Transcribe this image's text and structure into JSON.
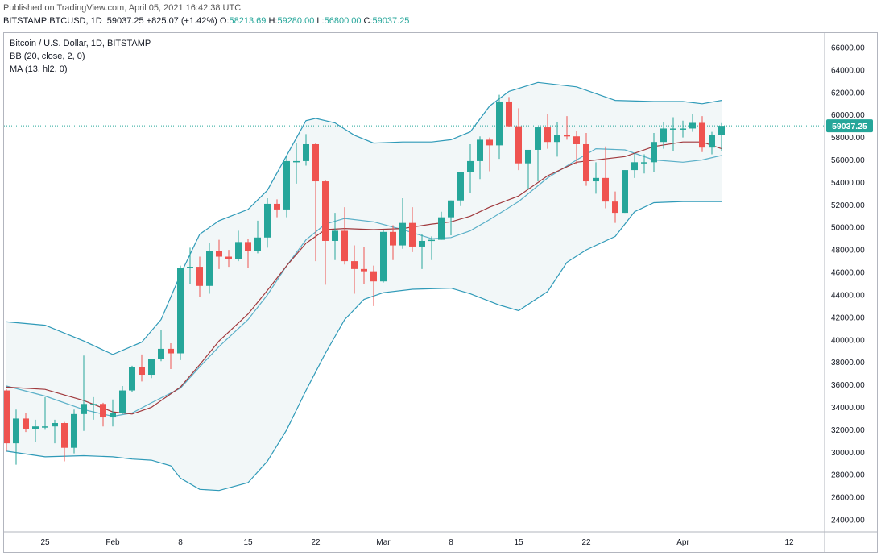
{
  "header": {
    "published": "Published on TradingView.com, April 05, 2021 16:42:38 UTC",
    "symbol": "BITSTAMP:BTCUSD, 1D",
    "last": "59037.25",
    "change": "+825.07 (+1.42%)",
    "o_label": "O:",
    "o": "58213.69",
    "h_label": "H:",
    "h": "59280.00",
    "l_label": "L:",
    "l": "56800.00",
    "c_label": "C:",
    "c": "59037.25"
  },
  "legend": {
    "title": "Bitcoin / U.S. Dollar, 1D, BITSTAMP",
    "bb": "BB (20, close, 2, 0)",
    "ma": "MA (13, hl2, 0)"
  },
  "colors": {
    "up": "#26a69a",
    "down": "#ef5350",
    "bb_band": "#2f9ab8",
    "bb_basis": "#5bb0c8",
    "ma": "#a0393d",
    "last_price_tag": "#26a69a"
  },
  "chart_data": {
    "type": "candlestick",
    "title": "Bitcoin / U.S. Dollar, 1D, BITSTAMP",
    "ylim": [
      23500,
      66800
    ],
    "y_ticks": [
      24000,
      26000,
      28000,
      30000,
      32000,
      34000,
      36000,
      38000,
      40000,
      42000,
      44000,
      46000,
      48000,
      50000,
      52000,
      54000,
      56000,
      58000,
      60000,
      62000,
      64000,
      66000
    ],
    "x_ticks": [
      "25",
      "Feb",
      "8",
      "15",
      "22",
      "Mar",
      "8",
      "15",
      "22",
      "Apr",
      "12"
    ],
    "x_tick_dates": [
      "2021-01-25",
      "2021-02-01",
      "2021-02-08",
      "2021-02-15",
      "2021-02-22",
      "2021-03-01",
      "2021-03-08",
      "2021-03-15",
      "2021-03-22",
      "2021-04-01",
      "2021-04-12"
    ],
    "last_price": 59037.25,
    "grid": true,
    "candles": [
      {
        "d": "2021-01-21",
        "o": 35500,
        "h": 35600,
        "l": 30100,
        "c": 30800
      },
      {
        "d": "2021-01-22",
        "o": 30800,
        "h": 33800,
        "l": 28900,
        "c": 33000
      },
      {
        "d": "2021-01-23",
        "o": 33000,
        "h": 33500,
        "l": 31800,
        "c": 32100
      },
      {
        "d": "2021-01-24",
        "o": 32100,
        "h": 32900,
        "l": 30900,
        "c": 32300
      },
      {
        "d": "2021-01-25",
        "o": 32300,
        "h": 34900,
        "l": 32000,
        "c": 32300
      },
      {
        "d": "2021-01-26",
        "o": 32300,
        "h": 32900,
        "l": 30800,
        "c": 32600
      },
      {
        "d": "2021-01-27",
        "o": 32600,
        "h": 32700,
        "l": 29200,
        "c": 30400
      },
      {
        "d": "2021-01-28",
        "o": 30400,
        "h": 33800,
        "l": 29900,
        "c": 33400
      },
      {
        "d": "2021-01-29",
        "o": 33400,
        "h": 38600,
        "l": 31900,
        "c": 34300
      },
      {
        "d": "2021-01-30",
        "o": 34300,
        "h": 34900,
        "l": 32900,
        "c": 34300
      },
      {
        "d": "2021-01-31",
        "o": 34300,
        "h": 34400,
        "l": 32300,
        "c": 33100
      },
      {
        "d": "2021-02-01",
        "o": 33100,
        "h": 34700,
        "l": 32300,
        "c": 33500
      },
      {
        "d": "2021-02-02",
        "o": 33500,
        "h": 35900,
        "l": 33400,
        "c": 35500
      },
      {
        "d": "2021-02-03",
        "o": 35500,
        "h": 37700,
        "l": 35400,
        "c": 37600
      },
      {
        "d": "2021-02-04",
        "o": 37600,
        "h": 38700,
        "l": 36300,
        "c": 36900
      },
      {
        "d": "2021-02-05",
        "o": 36900,
        "h": 38300,
        "l": 36600,
        "c": 38300
      },
      {
        "d": "2021-02-06",
        "o": 38300,
        "h": 40900,
        "l": 38100,
        "c": 39200
      },
      {
        "d": "2021-02-07",
        "o": 39200,
        "h": 39700,
        "l": 37400,
        "c": 38800
      },
      {
        "d": "2021-02-08",
        "o": 38800,
        "h": 46600,
        "l": 38200,
        "c": 46400
      },
      {
        "d": "2021-02-09",
        "o": 46400,
        "h": 48200,
        "l": 45000,
        "c": 46500
      },
      {
        "d": "2021-02-10",
        "o": 46500,
        "h": 47400,
        "l": 43800,
        "c": 44800
      },
      {
        "d": "2021-02-11",
        "o": 44800,
        "h": 48600,
        "l": 44100,
        "c": 47900
      },
      {
        "d": "2021-02-12",
        "o": 47900,
        "h": 48900,
        "l": 46300,
        "c": 47400
      },
      {
        "d": "2021-02-13",
        "o": 47400,
        "h": 48000,
        "l": 46500,
        "c": 47200
      },
      {
        "d": "2021-02-14",
        "o": 47200,
        "h": 49700,
        "l": 47000,
        "c": 48700
      },
      {
        "d": "2021-02-15",
        "o": 48700,
        "h": 49000,
        "l": 46400,
        "c": 47900
      },
      {
        "d": "2021-02-16",
        "o": 47900,
        "h": 50600,
        "l": 47700,
        "c": 49100
      },
      {
        "d": "2021-02-17",
        "o": 49100,
        "h": 52600,
        "l": 48200,
        "c": 52100
      },
      {
        "d": "2021-02-18",
        "o": 52100,
        "h": 52500,
        "l": 50900,
        "c": 51600
      },
      {
        "d": "2021-02-19",
        "o": 51600,
        "h": 56300,
        "l": 50900,
        "c": 55900
      },
      {
        "d": "2021-02-20",
        "o": 55900,
        "h": 57500,
        "l": 53900,
        "c": 55900
      },
      {
        "d": "2021-02-21",
        "o": 55900,
        "h": 58300,
        "l": 55500,
        "c": 57400
      },
      {
        "d": "2021-02-22",
        "o": 57400,
        "h": 57500,
        "l": 47000,
        "c": 54100
      },
      {
        "d": "2021-02-23",
        "o": 54100,
        "h": 54200,
        "l": 44900,
        "c": 48800
      },
      {
        "d": "2021-02-24",
        "o": 48800,
        "h": 51300,
        "l": 47100,
        "c": 49700
      },
      {
        "d": "2021-02-25",
        "o": 49700,
        "h": 51800,
        "l": 46700,
        "c": 47000
      },
      {
        "d": "2021-02-26",
        "o": 47000,
        "h": 48400,
        "l": 44100,
        "c": 46300
      },
      {
        "d": "2021-02-27",
        "o": 46300,
        "h": 48300,
        "l": 45000,
        "c": 46100
      },
      {
        "d": "2021-02-28",
        "o": 46100,
        "h": 46600,
        "l": 43000,
        "c": 45200
      },
      {
        "d": "2021-03-01",
        "o": 45200,
        "h": 49800,
        "l": 45100,
        "c": 49600
      },
      {
        "d": "2021-03-02",
        "o": 49600,
        "h": 50200,
        "l": 47100,
        "c": 48400
      },
      {
        "d": "2021-03-03",
        "o": 48400,
        "h": 52600,
        "l": 48100,
        "c": 50400
      },
      {
        "d": "2021-03-04",
        "o": 50400,
        "h": 51800,
        "l": 47800,
        "c": 48300
      },
      {
        "d": "2021-03-05",
        "o": 48300,
        "h": 49400,
        "l": 46300,
        "c": 48800
      },
      {
        "d": "2021-03-06",
        "o": 48800,
        "h": 49200,
        "l": 47100,
        "c": 48900
      },
      {
        "d": "2021-03-07",
        "o": 48900,
        "h": 51400,
        "l": 48900,
        "c": 50900
      },
      {
        "d": "2021-03-08",
        "o": 50900,
        "h": 52400,
        "l": 49300,
        "c": 52400
      },
      {
        "d": "2021-03-09",
        "o": 52400,
        "h": 54900,
        "l": 51900,
        "c": 54900
      },
      {
        "d": "2021-03-10",
        "o": 54900,
        "h": 57400,
        "l": 53100,
        "c": 55900
      },
      {
        "d": "2021-03-11",
        "o": 55900,
        "h": 58100,
        "l": 54300,
        "c": 57800
      },
      {
        "d": "2021-03-12",
        "o": 57800,
        "h": 58000,
        "l": 55000,
        "c": 57300
      },
      {
        "d": "2021-03-13",
        "o": 57300,
        "h": 61800,
        "l": 56100,
        "c": 61200
      },
      {
        "d": "2021-03-14",
        "o": 61200,
        "h": 61600,
        "l": 58900,
        "c": 59000
      },
      {
        "d": "2021-03-15",
        "o": 59000,
        "h": 60600,
        "l": 55100,
        "c": 55700
      },
      {
        "d": "2021-03-16",
        "o": 55700,
        "h": 56900,
        "l": 53400,
        "c": 56900
      },
      {
        "d": "2021-03-17",
        "o": 56900,
        "h": 58900,
        "l": 54100,
        "c": 58900
      },
      {
        "d": "2021-03-18",
        "o": 58900,
        "h": 60100,
        "l": 57000,
        "c": 57600
      },
      {
        "d": "2021-03-19",
        "o": 57600,
        "h": 59400,
        "l": 56300,
        "c": 58200
      },
      {
        "d": "2021-03-20",
        "o": 58200,
        "h": 59900,
        "l": 57800,
        "c": 58100
      },
      {
        "d": "2021-03-21",
        "o": 58100,
        "h": 58600,
        "l": 55600,
        "c": 57400
      },
      {
        "d": "2021-03-22",
        "o": 57400,
        "h": 58400,
        "l": 53700,
        "c": 54100
      },
      {
        "d": "2021-03-23",
        "o": 54100,
        "h": 55800,
        "l": 53000,
        "c": 54400
      },
      {
        "d": "2021-03-24",
        "o": 54400,
        "h": 57200,
        "l": 51700,
        "c": 52300
      },
      {
        "d": "2021-03-25",
        "o": 52300,
        "h": 53200,
        "l": 50400,
        "c": 51300
      },
      {
        "d": "2021-03-26",
        "o": 51300,
        "h": 55100,
        "l": 51300,
        "c": 55100
      },
      {
        "d": "2021-03-27",
        "o": 55100,
        "h": 56600,
        "l": 54400,
        "c": 55800
      },
      {
        "d": "2021-03-28",
        "o": 55800,
        "h": 56500,
        "l": 54800,
        "c": 55800
      },
      {
        "d": "2021-03-29",
        "o": 55800,
        "h": 58400,
        "l": 54900,
        "c": 57600
      },
      {
        "d": "2021-03-30",
        "o": 57600,
        "h": 59400,
        "l": 57000,
        "c": 58800
      },
      {
        "d": "2021-03-31",
        "o": 58800,
        "h": 59800,
        "l": 56800,
        "c": 58800
      },
      {
        "d": "2021-04-01",
        "o": 58800,
        "h": 59500,
        "l": 58000,
        "c": 58800
      },
      {
        "d": "2021-04-02",
        "o": 58800,
        "h": 60100,
        "l": 58500,
        "c": 59300
      },
      {
        "d": "2021-04-03",
        "o": 59300,
        "h": 59900,
        "l": 56700,
        "c": 57100
      },
      {
        "d": "2021-04-04",
        "o": 57100,
        "h": 58500,
        "l": 56500,
        "c": 58200
      },
      {
        "d": "2021-04-05",
        "o": 58213.69,
        "h": 59280,
        "l": 56800,
        "c": 59037.25
      }
    ],
    "bb_upper": [
      {
        "d": "2021-01-21",
        "v": 41600
      },
      {
        "d": "2021-01-25",
        "v": 41300
      },
      {
        "d": "2021-01-29",
        "v": 39900
      },
      {
        "d": "2021-02-01",
        "v": 38700
      },
      {
        "d": "2021-02-04",
        "v": 39800
      },
      {
        "d": "2021-02-06",
        "v": 41800
      },
      {
        "d": "2021-02-08",
        "v": 45800
      },
      {
        "d": "2021-02-10",
        "v": 49400
      },
      {
        "d": "2021-02-12",
        "v": 50600
      },
      {
        "d": "2021-02-15",
        "v": 51600
      },
      {
        "d": "2021-02-17",
        "v": 53300
      },
      {
        "d": "2021-02-19",
        "v": 56400
      },
      {
        "d": "2021-02-21",
        "v": 59500
      },
      {
        "d": "2021-02-22",
        "v": 59700
      },
      {
        "d": "2021-02-24",
        "v": 59300
      },
      {
        "d": "2021-02-26",
        "v": 58200
      },
      {
        "d": "2021-02-28",
        "v": 57500
      },
      {
        "d": "2021-03-03",
        "v": 57600
      },
      {
        "d": "2021-03-06",
        "v": 57600
      },
      {
        "d": "2021-03-08",
        "v": 57800
      },
      {
        "d": "2021-03-10",
        "v": 58500
      },
      {
        "d": "2021-03-12",
        "v": 60800
      },
      {
        "d": "2021-03-14",
        "v": 62100
      },
      {
        "d": "2021-03-17",
        "v": 62900
      },
      {
        "d": "2021-03-21",
        "v": 62500
      },
      {
        "d": "2021-03-25",
        "v": 61300
      },
      {
        "d": "2021-03-29",
        "v": 61200
      },
      {
        "d": "2021-04-01",
        "v": 61200
      },
      {
        "d": "2021-04-03",
        "v": 61000
      },
      {
        "d": "2021-04-05",
        "v": 61300
      }
    ],
    "bb_basis": [
      {
        "d": "2021-01-21",
        "v": 35900
      },
      {
        "d": "2021-01-25",
        "v": 35000
      },
      {
        "d": "2021-01-29",
        "v": 33800
      },
      {
        "d": "2021-02-01",
        "v": 33200
      },
      {
        "d": "2021-02-03",
        "v": 33500
      },
      {
        "d": "2021-02-05",
        "v": 34400
      },
      {
        "d": "2021-02-08",
        "v": 35700
      },
      {
        "d": "2021-02-10",
        "v": 37600
      },
      {
        "d": "2021-02-12",
        "v": 39400
      },
      {
        "d": "2021-02-15",
        "v": 41800
      },
      {
        "d": "2021-02-17",
        "v": 44000
      },
      {
        "d": "2021-02-19",
        "v": 46600
      },
      {
        "d": "2021-02-21",
        "v": 48900
      },
      {
        "d": "2021-02-23",
        "v": 50300
      },
      {
        "d": "2021-02-25",
        "v": 50800
      },
      {
        "d": "2021-02-28",
        "v": 50500
      },
      {
        "d": "2021-03-03",
        "v": 49800
      },
      {
        "d": "2021-03-06",
        "v": 49000
      },
      {
        "d": "2021-03-08",
        "v": 49100
      },
      {
        "d": "2021-03-10",
        "v": 49700
      },
      {
        "d": "2021-03-12",
        "v": 50700
      },
      {
        "d": "2021-03-15",
        "v": 52300
      },
      {
        "d": "2021-03-18",
        "v": 54400
      },
      {
        "d": "2021-03-21",
        "v": 56000
      },
      {
        "d": "2021-03-23",
        "v": 57000
      },
      {
        "d": "2021-03-26",
        "v": 56900
      },
      {
        "d": "2021-03-29",
        "v": 56000
      },
      {
        "d": "2021-04-01",
        "v": 55800
      },
      {
        "d": "2021-04-03",
        "v": 56000
      },
      {
        "d": "2021-04-05",
        "v": 56400
      }
    ],
    "bb_lower": [
      {
        "d": "2021-01-21",
        "v": 30100
      },
      {
        "d": "2021-01-25",
        "v": 29600
      },
      {
        "d": "2021-01-29",
        "v": 29700
      },
      {
        "d": "2021-02-01",
        "v": 29600
      },
      {
        "d": "2021-02-03",
        "v": 29400
      },
      {
        "d": "2021-02-05",
        "v": 29300
      },
      {
        "d": "2021-02-07",
        "v": 28800
      },
      {
        "d": "2021-02-08",
        "v": 27700
      },
      {
        "d": "2021-02-10",
        "v": 26700
      },
      {
        "d": "2021-02-12",
        "v": 26600
      },
      {
        "d": "2021-02-15",
        "v": 27300
      },
      {
        "d": "2021-02-17",
        "v": 29200
      },
      {
        "d": "2021-02-19",
        "v": 32000
      },
      {
        "d": "2021-02-21",
        "v": 35500
      },
      {
        "d": "2021-02-23",
        "v": 38800
      },
      {
        "d": "2021-02-25",
        "v": 41800
      },
      {
        "d": "2021-02-27",
        "v": 43600
      },
      {
        "d": "2021-03-01",
        "v": 44200
      },
      {
        "d": "2021-03-04",
        "v": 44500
      },
      {
        "d": "2021-03-08",
        "v": 44600
      },
      {
        "d": "2021-03-10",
        "v": 44100
      },
      {
        "d": "2021-03-13",
        "v": 43100
      },
      {
        "d": "2021-03-15",
        "v": 42600
      },
      {
        "d": "2021-03-18",
        "v": 44300
      },
      {
        "d": "2021-03-20",
        "v": 46900
      },
      {
        "d": "2021-03-22",
        "v": 48000
      },
      {
        "d": "2021-03-25",
        "v": 49200
      },
      {
        "d": "2021-03-27",
        "v": 51400
      },
      {
        "d": "2021-03-29",
        "v": 52200
      },
      {
        "d": "2021-04-01",
        "v": 52300
      },
      {
        "d": "2021-04-05",
        "v": 52300
      }
    ],
    "ma_13": [
      {
        "d": "2021-01-21",
        "v": 35800
      },
      {
        "d": "2021-01-25",
        "v": 35600
      },
      {
        "d": "2021-01-29",
        "v": 34600
      },
      {
        "d": "2021-02-01",
        "v": 33600
      },
      {
        "d": "2021-02-03",
        "v": 33400
      },
      {
        "d": "2021-02-05",
        "v": 34000
      },
      {
        "d": "2021-02-08",
        "v": 35800
      },
      {
        "d": "2021-02-10",
        "v": 37800
      },
      {
        "d": "2021-02-12",
        "v": 39900
      },
      {
        "d": "2021-02-15",
        "v": 42300
      },
      {
        "d": "2021-02-17",
        "v": 44400
      },
      {
        "d": "2021-02-19",
        "v": 46600
      },
      {
        "d": "2021-02-21",
        "v": 48600
      },
      {
        "d": "2021-02-23",
        "v": 49800
      },
      {
        "d": "2021-02-25",
        "v": 49900
      },
      {
        "d": "2021-02-28",
        "v": 49800
      },
      {
        "d": "2021-03-03",
        "v": 49900
      },
      {
        "d": "2021-03-06",
        "v": 50300
      },
      {
        "d": "2021-03-08",
        "v": 50500
      },
      {
        "d": "2021-03-10",
        "v": 51000
      },
      {
        "d": "2021-03-12",
        "v": 51800
      },
      {
        "d": "2021-03-15",
        "v": 52800
      },
      {
        "d": "2021-03-18",
        "v": 54600
      },
      {
        "d": "2021-03-21",
        "v": 55800
      },
      {
        "d": "2021-03-23",
        "v": 56000
      },
      {
        "d": "2021-03-26",
        "v": 56300
      },
      {
        "d": "2021-03-29",
        "v": 57200
      },
      {
        "d": "2021-04-01",
        "v": 57600
      },
      {
        "d": "2021-04-03",
        "v": 57600
      },
      {
        "d": "2021-04-05",
        "v": 57000
      }
    ]
  }
}
